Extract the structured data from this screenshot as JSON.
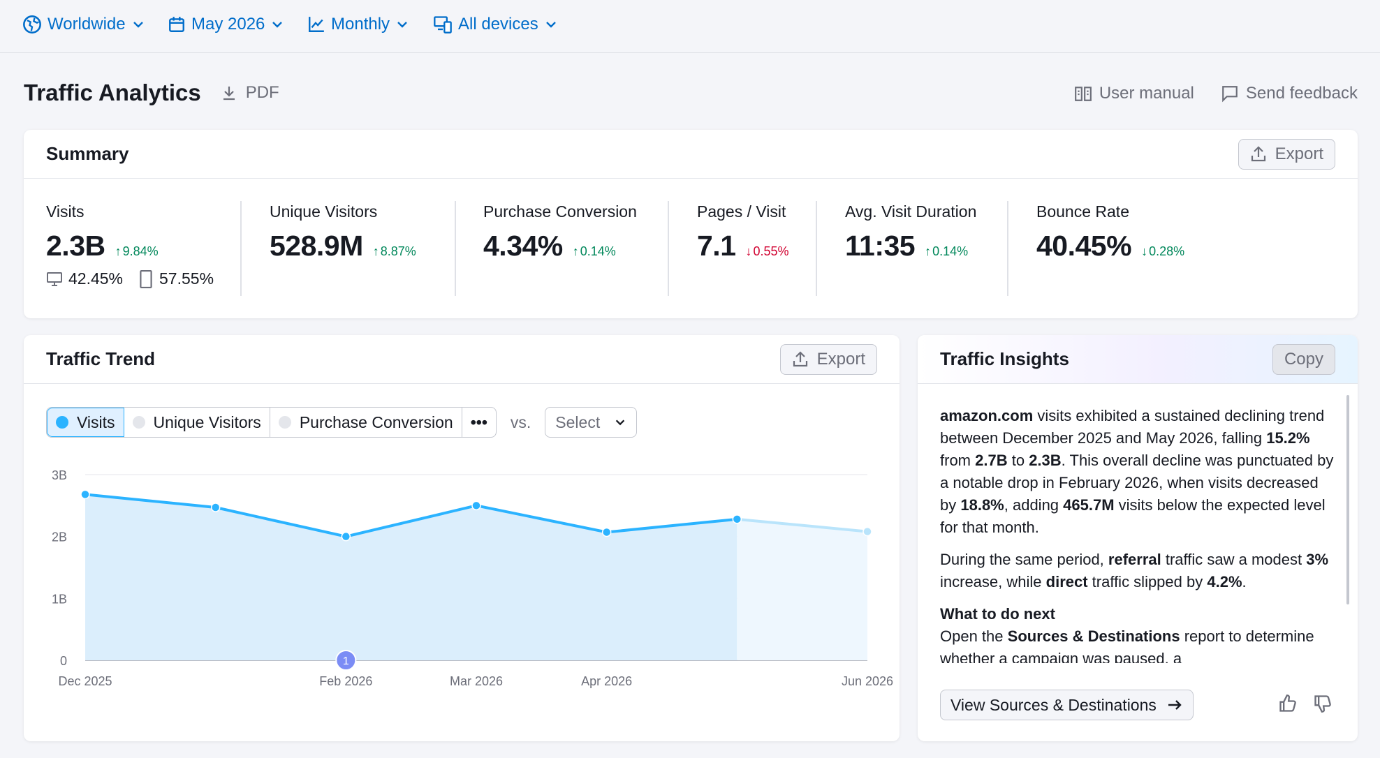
{
  "filters": {
    "region": "Worldwide",
    "date": "May 2026",
    "granularity": "Monthly",
    "devices": "All devices"
  },
  "header": {
    "title": "Traffic Analytics",
    "pdf_label": "PDF",
    "user_manual": "User manual",
    "send_feedback": "Send feedback"
  },
  "summary": {
    "title": "Summary",
    "export_label": "Export",
    "metrics": [
      {
        "label": "Visits",
        "value": "2.3B",
        "delta": "9.84%",
        "direction": "up"
      },
      {
        "label": "Unique Visitors",
        "value": "528.9M",
        "delta": "8.87%",
        "direction": "up"
      },
      {
        "label": "Purchase Conversion",
        "value": "4.34%",
        "delta": "0.14%",
        "direction": "up"
      },
      {
        "label": "Pages / Visit",
        "value": "7.1",
        "delta": "0.55%",
        "direction": "down"
      },
      {
        "label": "Avg. Visit Duration",
        "value": "11:35",
        "delta": "0.14%",
        "direction": "up"
      },
      {
        "label": "Bounce Rate",
        "value": "40.45%",
        "delta": "0.28%",
        "direction": "down-good"
      }
    ],
    "device_split": {
      "desktop": "42.45%",
      "mobile": "57.55%"
    }
  },
  "trend": {
    "title": "Traffic Trend",
    "export_label": "Export",
    "series_tabs": [
      "Visits",
      "Unique Visitors",
      "Purchase Conversion"
    ],
    "more_label": "•••",
    "vs_label": "vs.",
    "select_label": "Select",
    "marker_label": "1"
  },
  "chart_data": {
    "type": "area",
    "x": [
      "Dec 2025",
      "Jan 2026",
      "Feb 2026",
      "Mar 2026",
      "Apr 2026",
      "May 2026",
      "Jun 2026"
    ],
    "x_tick_labels": [
      "Dec 2025",
      "",
      "Feb 2026",
      "Mar 2026",
      "Apr 2026",
      "",
      "Jun 2026"
    ],
    "series": [
      {
        "name": "Visits",
        "values": [
          2.68,
          2.47,
          2.0,
          2.5,
          2.07,
          2.28,
          2.08
        ],
        "unit": "B"
      }
    ],
    "projected_from_index": 5,
    "ylim": [
      0,
      3
    ],
    "y_ticks": [
      "0",
      "1B",
      "2B",
      "3B"
    ],
    "grid": true,
    "colors": {
      "line": "#2bb3ff",
      "area": "#dbeefc",
      "projected": "#b9e4fb"
    }
  },
  "insights": {
    "title": "Traffic Insights",
    "copy_label": "Copy",
    "p1": [
      {
        "t": "amazon.com",
        "b": true
      },
      {
        "t": " visits exhibited a sustained declining trend between December 2025 and May 2026, falling ",
        "b": false
      },
      {
        "t": "15.2%",
        "b": true
      },
      {
        "t": " from ",
        "b": false
      },
      {
        "t": "2.7B",
        "b": true
      },
      {
        "t": " to ",
        "b": false
      },
      {
        "t": "2.3B",
        "b": true
      },
      {
        "t": ". This overall decline was punctuated by a notable drop in February 2026, when visits decreased by ",
        "b": false
      },
      {
        "t": "18.8%",
        "b": true
      },
      {
        "t": ", adding ",
        "b": false
      },
      {
        "t": "465.7M",
        "b": true
      },
      {
        "t": " visits below the expected level for that month.",
        "b": false
      }
    ],
    "p2": [
      {
        "t": "During the same period, ",
        "b": false
      },
      {
        "t": "referral",
        "b": true
      },
      {
        "t": " traffic saw a modest ",
        "b": false
      },
      {
        "t": "3%",
        "b": true
      },
      {
        "t": " increase, while ",
        "b": false
      },
      {
        "t": "direct",
        "b": true
      },
      {
        "t": " traffic slipped by ",
        "b": false
      },
      {
        "t": "4.2%",
        "b": true
      },
      {
        "t": ".",
        "b": false
      }
    ],
    "next_heading": "What to do next",
    "p3": [
      {
        "t": "Open the ",
        "b": false
      },
      {
        "t": "Sources & Destinations",
        "b": true
      },
      {
        "t": " report to determine whether a campaign was paused, a",
        "b": false
      }
    ],
    "view_button": "View Sources & Destinations"
  }
}
